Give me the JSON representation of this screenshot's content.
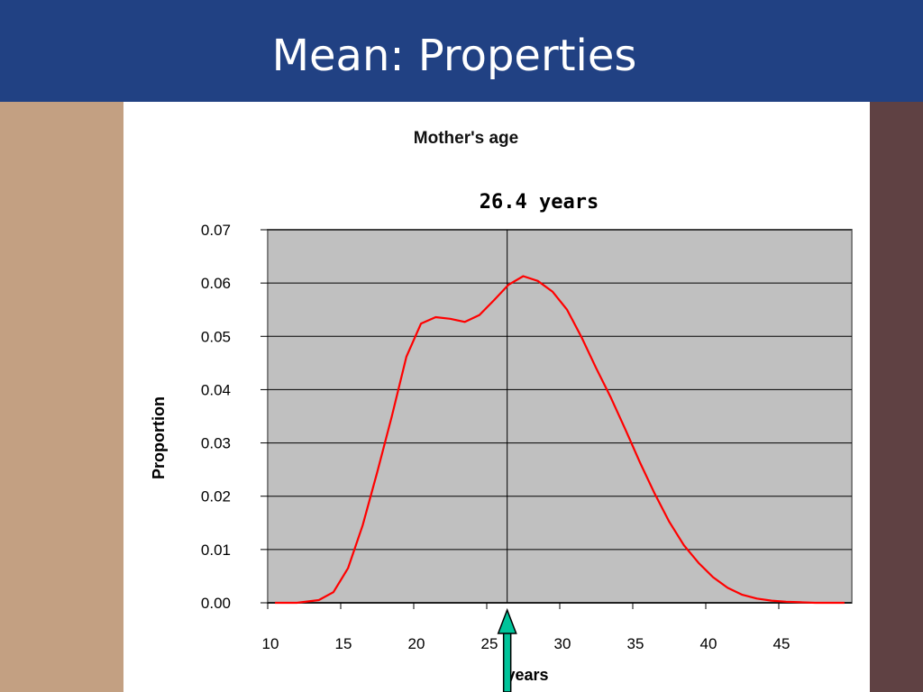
{
  "slide": {
    "title": "Mean: Properties"
  },
  "colors": {
    "header": "#214183",
    "left_bar": "#c3a082",
    "right_bar": "#5f4143",
    "plot_bg": "#c0c0c0",
    "curve": "#ff0000",
    "arrow": "#00c49a"
  },
  "icons": {
    "mean_marker": "up-arrow-icon"
  },
  "chart_data": {
    "type": "line",
    "title": "Mother's age",
    "xlabel": "years",
    "ylabel": "Proportion",
    "xlim": [
      10,
      50
    ],
    "ylim": [
      0,
      0.07
    ],
    "x_ticks": [
      10,
      15,
      20,
      25,
      30,
      35,
      40,
      45
    ],
    "y_ticks": [
      "0.00",
      "0.01",
      "0.02",
      "0.03",
      "0.04",
      "0.05",
      "0.06",
      "0.07"
    ],
    "grid": true,
    "legend": "none",
    "annotation": {
      "label": "26.4 years",
      "x": 26.4
    },
    "series": [
      {
        "x": [
          10.5,
          12,
          13.5,
          14.5,
          15.5,
          16.5,
          17.5,
          18.5,
          19.5,
          20.5,
          21.5,
          22.5,
          23.5,
          24.5,
          25.5,
          26.5,
          27.5,
          28.5,
          29.5,
          30.5,
          31.5,
          32.5,
          33.5,
          34.5,
          35.5,
          36.5,
          37.5,
          38.5,
          39.5,
          40.5,
          41.5,
          42.5,
          43.5,
          44.5,
          45.5,
          46.5,
          47.5,
          48.5,
          49.5
        ],
        "values": [
          0.0,
          0.0,
          0.0005,
          0.002,
          0.0065,
          0.0145,
          0.0245,
          0.035,
          0.0462,
          0.0524,
          0.0536,
          0.0533,
          0.0527,
          0.054,
          0.0568,
          0.0597,
          0.0613,
          0.0604,
          0.0584,
          0.055,
          0.0498,
          0.044,
          0.0385,
          0.0325,
          0.0263,
          0.0205,
          0.0152,
          0.0108,
          0.0075,
          0.0048,
          0.0028,
          0.0015,
          0.0008,
          0.0004,
          0.0002,
          0.0001,
          0.0,
          0.0,
          0.0
        ]
      }
    ]
  }
}
